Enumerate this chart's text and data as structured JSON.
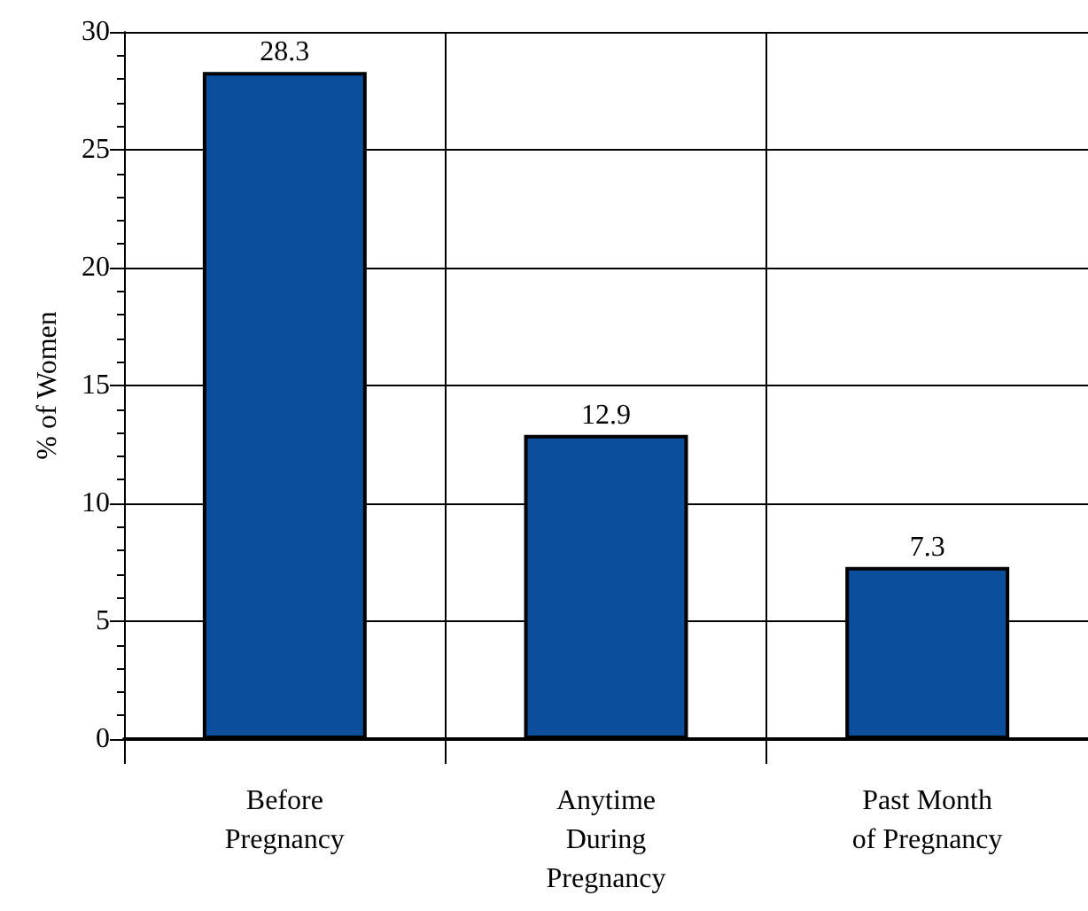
{
  "chart_data": {
    "type": "bar",
    "ylabel": "% of Women",
    "categories": [
      "Before\nPregnancy",
      "Anytime\nDuring\nPregnancy",
      "Past Month\nof Pregnancy"
    ],
    "values": [
      28.3,
      12.9,
      7.3
    ],
    "color": "#0b4f9c",
    "ylim": [
      0,
      30
    ],
    "yticks": [
      0,
      5,
      10,
      15,
      20,
      25,
      30
    ],
    "grid": true,
    "data_labels": true
  }
}
